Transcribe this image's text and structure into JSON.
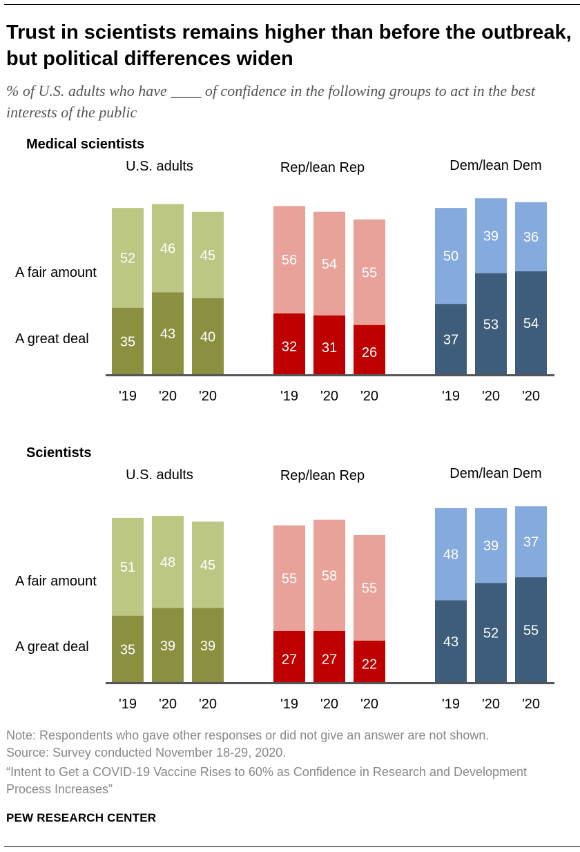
{
  "title": "Trust in scientists remains higher than before the outbreak, but political differences widen",
  "subtitle": "% of U.S. adults who have ____ of confidence in the following groups to act in the best interests of the public",
  "row_labels": {
    "fair": "A fair amount",
    "great": "A great deal"
  },
  "colors": {
    "us_light": "#bcc783",
    "us_dark": "#8a9040",
    "rep_light": "#e8a299",
    "rep_dark": "#be0000",
    "dem_light": "#85aadd",
    "dem_dark": "#3d5d7a",
    "axis": "#555555"
  },
  "chart_data": [
    {
      "type": "bar",
      "stacked": true,
      "title": "Medical scientists",
      "groups": [
        {
          "name": "U.S. adults",
          "categories": [
            "'19",
            "'20",
            "'20"
          ],
          "series": [
            {
              "name": "A great deal",
              "values": [
                35,
                43,
                40
              ]
            },
            {
              "name": "A fair amount",
              "values": [
                52,
                46,
                45
              ]
            }
          ]
        },
        {
          "name": "Rep/lean Rep",
          "categories": [
            "'19",
            "'20",
            "'20"
          ],
          "series": [
            {
              "name": "A great deal",
              "values": [
                32,
                31,
                26
              ]
            },
            {
              "name": "A fair amount",
              "values": [
                56,
                54,
                55
              ]
            }
          ]
        },
        {
          "name": "Dem/lean Dem",
          "categories": [
            "'19",
            "'20",
            "'20"
          ],
          "series": [
            {
              "name": "A great deal",
              "values": [
                37,
                53,
                54
              ]
            },
            {
              "name": "A fair amount",
              "values": [
                50,
                39,
                36
              ]
            }
          ]
        }
      ],
      "ylim": [
        0,
        100
      ]
    },
    {
      "type": "bar",
      "stacked": true,
      "title": "Scientists",
      "groups": [
        {
          "name": "U.S. adults",
          "categories": [
            "'19",
            "'20",
            "'20"
          ],
          "series": [
            {
              "name": "A great deal",
              "values": [
                35,
                39,
                39
              ]
            },
            {
              "name": "A fair amount",
              "values": [
                51,
                48,
                45
              ]
            }
          ]
        },
        {
          "name": "Rep/lean Rep",
          "categories": [
            "'19",
            "'20",
            "'20"
          ],
          "series": [
            {
              "name": "A great deal",
              "values": [
                27,
                27,
                22
              ]
            },
            {
              "name": "A fair amount",
              "values": [
                55,
                58,
                55
              ]
            }
          ]
        },
        {
          "name": "Dem/lean Dem",
          "categories": [
            "'19",
            "'20",
            "'20"
          ],
          "series": [
            {
              "name": "A great deal",
              "values": [
                43,
                52,
                55
              ]
            },
            {
              "name": "A fair amount",
              "values": [
                48,
                39,
                37
              ]
            }
          ]
        }
      ],
      "ylim": [
        0,
        100
      ]
    }
  ],
  "notes": {
    "note": "Note: Respondents who gave other responses or did not give an answer are not shown.",
    "source": "Source: Survey conducted November 18-29, 2020.",
    "report": "“Intent to Get a COVID-19 Vaccine Rises to 60% as Confidence in Research and Development Process Increases”"
  },
  "brand": "PEW RESEARCH CENTER"
}
